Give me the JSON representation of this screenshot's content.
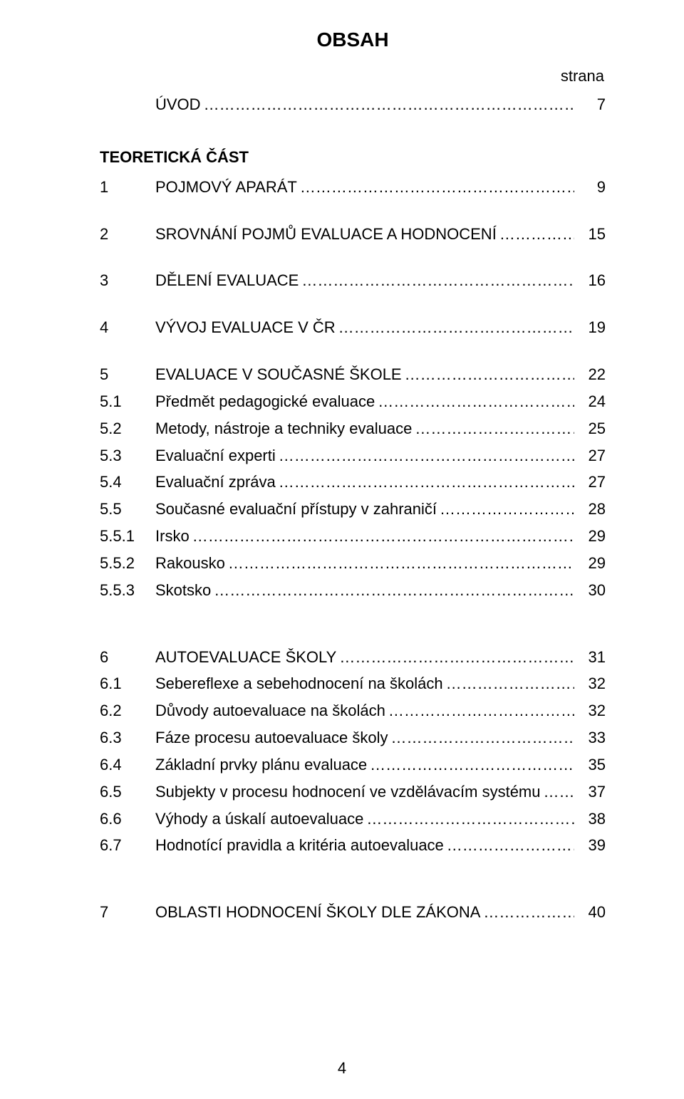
{
  "title": "OBSAH",
  "strana_label": "strana",
  "page_number": "4",
  "entries": [
    {
      "num": "",
      "label": "ÚVOD",
      "page": "7",
      "bold_num": false
    },
    {
      "type": "gap"
    },
    {
      "type": "part",
      "label": "TEORETICKÁ ČÁST"
    },
    {
      "num": "1",
      "label": "POJMOVÝ APARÁT",
      "page": "9"
    },
    {
      "type": "gap"
    },
    {
      "num": "2",
      "label": "SROVNÁNÍ POJMŮ EVALUACE A HODNOCENÍ",
      "page": "15"
    },
    {
      "type": "gap"
    },
    {
      "num": "3",
      "label": "DĚLENÍ EVALUACE",
      "page": "16"
    },
    {
      "type": "gap"
    },
    {
      "num": "4",
      "label": "VÝVOJ EVALUACE V ČR",
      "page": "19"
    },
    {
      "type": "gap"
    },
    {
      "num": "5",
      "label": "EVALUACE V SOUČASNÉ ŠKOLE",
      "page": "22"
    },
    {
      "num": "5.1",
      "label": "Předmět pedagogické evaluace",
      "page": "24"
    },
    {
      "num": "5.2",
      "label": "Metody, nástroje a techniky evaluace",
      "page": "25"
    },
    {
      "num": "5.3",
      "label": "Evaluační experti",
      "page": "27"
    },
    {
      "num": "5.4",
      "label": "Evaluační zpráva",
      "page": "27"
    },
    {
      "num": "5.5",
      "label": "Současné evaluační přístupy v zahraničí",
      "page": "28"
    },
    {
      "num": "5.5.1",
      "label": "Irsko",
      "page": "29"
    },
    {
      "num": "5.5.2",
      "label": "Rakousko",
      "page": "29"
    },
    {
      "num": "5.5.3",
      "label": "Skotsko",
      "page": "30"
    },
    {
      "type": "gap"
    },
    {
      "type": "gap"
    },
    {
      "num": "6",
      "label": "AUTOEVALUACE ŠKOLY",
      "page": "31"
    },
    {
      "num": "6.1",
      "label": "Sebereflexe a sebehodnocení na školách",
      "page": "32"
    },
    {
      "num": "6.2",
      "label": "Důvody autoevaluace na školách",
      "page": "32"
    },
    {
      "num": "6.3",
      "label": "Fáze procesu autoevaluace školy",
      "page": "33"
    },
    {
      "num": "6.4",
      "label": "Základní prvky plánu evaluace",
      "page": "35"
    },
    {
      "num": "6.5",
      "label": "Subjekty v procesu hodnocení ve vzdělávacím systému",
      "page": "37"
    },
    {
      "num": "6.6",
      "label": "Výhody a úskalí autoevaluace",
      "page": "38"
    },
    {
      "num": "6.7",
      "label": "Hodnotící pravidla a kritéria autoevaluace",
      "page": "39"
    },
    {
      "type": "gap"
    },
    {
      "type": "gap"
    },
    {
      "num": "7",
      "label": "OBLASTI HODNOCENÍ ŠKOLY DLE ZÁKONA",
      "page": "40"
    }
  ]
}
